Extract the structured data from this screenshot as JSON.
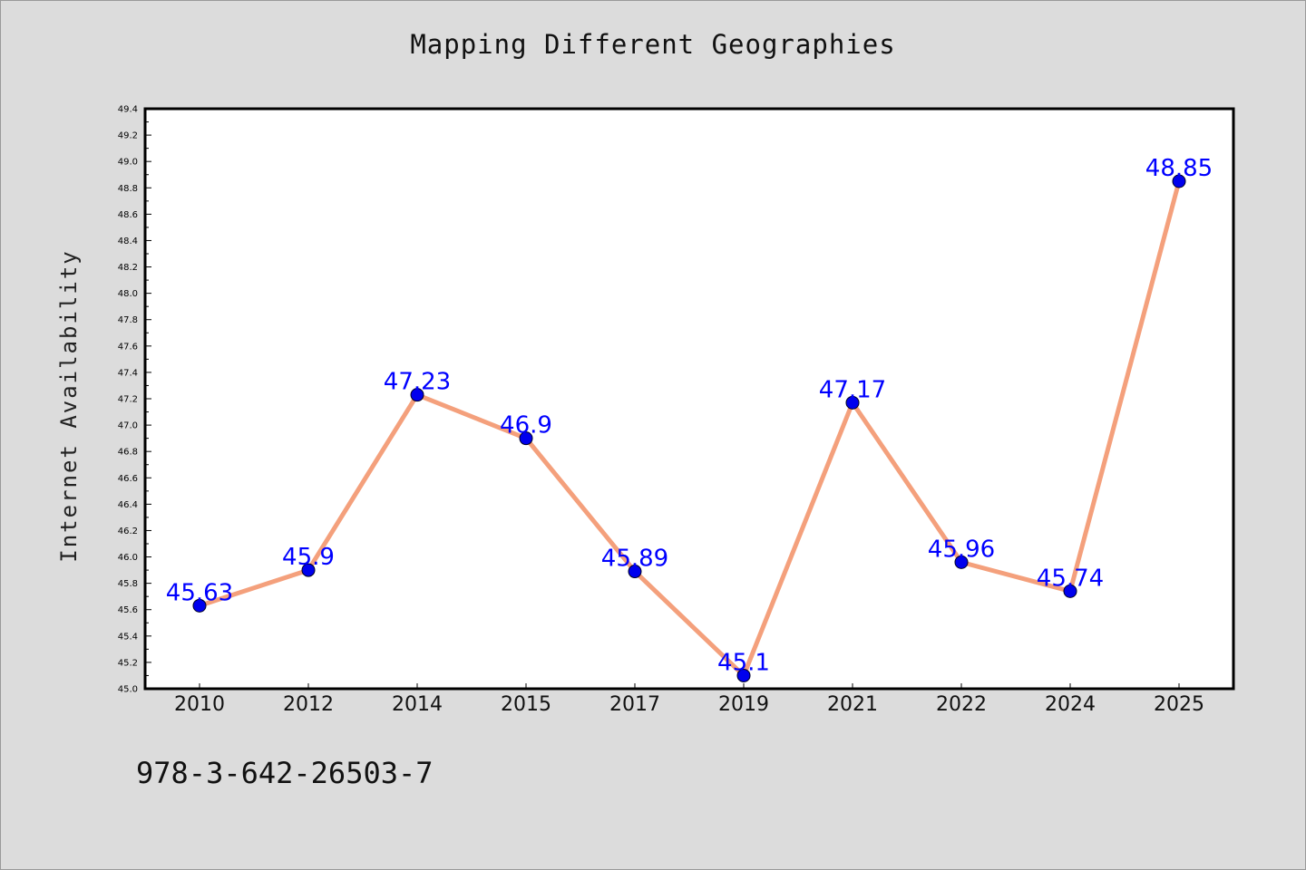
{
  "chart_data": {
    "type": "line",
    "title": "Mapping Different Geographies",
    "xlabel": "",
    "ylabel": "Internet Availability",
    "categories": [
      "2010",
      "2012",
      "2014",
      "2015",
      "2017",
      "2019",
      "2021",
      "2022",
      "2024",
      "2025"
    ],
    "series": [
      {
        "values": [
          45.63,
          45.9,
          47.23,
          46.9,
          45.89,
          45.1,
          47.17,
          45.96,
          45.74,
          48.85
        ],
        "data_labels": [
          "45.63",
          "45.9",
          "47.23",
          "46.9",
          "45.89",
          "45.1",
          "47.17",
          "45.96",
          "45.74",
          "48.85"
        ],
        "line_color": "#f4a07c",
        "marker_color": "#0000ee",
        "label_color": "#0000ff"
      }
    ],
    "ylim": [
      45.0,
      49.4
    ],
    "yticks": [
      "45.0",
      "45.2",
      "45.4",
      "45.6",
      "45.8",
      "46.0",
      "46.2",
      "46.4",
      "46.6",
      "46.8",
      "47.0",
      "47.2",
      "47.4",
      "47.6",
      "47.8",
      "48.0",
      "48.2",
      "48.4",
      "48.6",
      "48.8",
      "49.0",
      "49.2",
      "49.4"
    ],
    "grid": false,
    "legend": "none"
  },
  "footer_text": "978-3-642-26503-7"
}
